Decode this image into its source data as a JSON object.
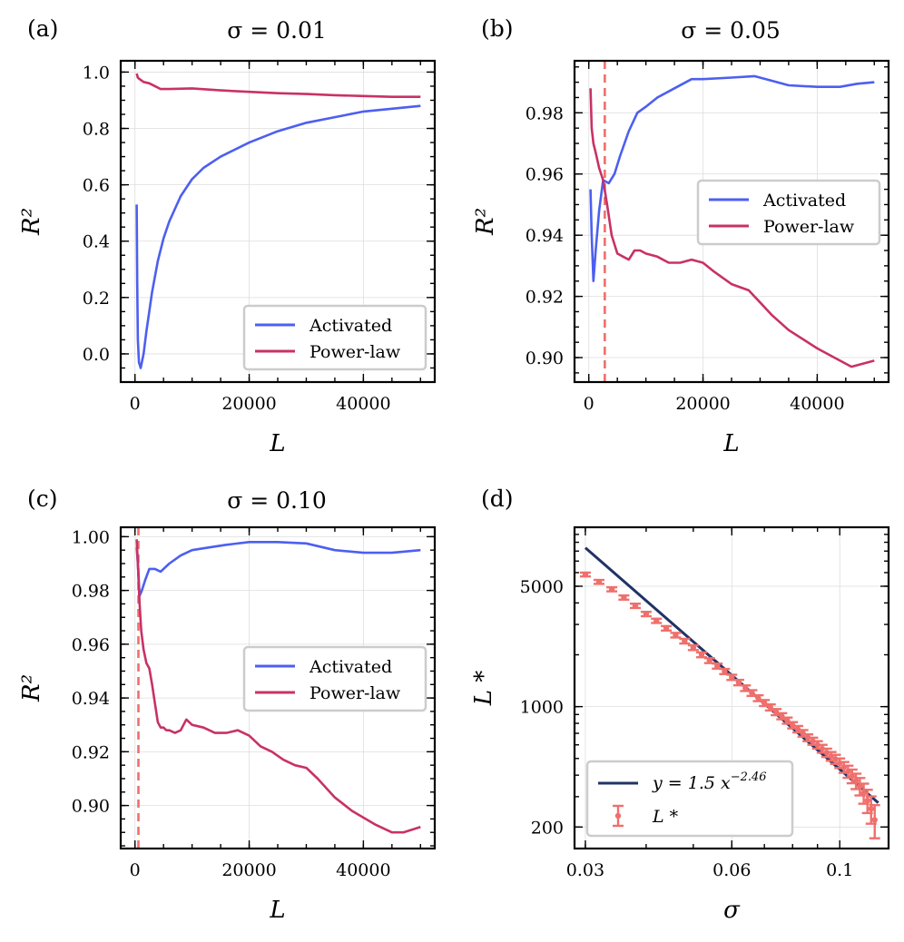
{
  "colors": {
    "activated": "#4c5ff0",
    "power_law": "#c83264",
    "threshold": "#ef6f6c",
    "fit": "#1f3366",
    "lstar": "#ef6f6c"
  },
  "panels": [
    {
      "id": "a",
      "label": "(a)",
      "title": "σ = 0.01"
    },
    {
      "id": "b",
      "label": "(b)",
      "title": "σ = 0.05"
    },
    {
      "id": "c",
      "label": "(c)",
      "title": "σ = 0.10"
    },
    {
      "id": "d",
      "label": "(d)",
      "title": ""
    }
  ],
  "legend": {
    "activated": "Activated",
    "power_law": "Power-law",
    "fit": "y = 1.5 x",
    "fit_exponent": "−2.46",
    "lstar": "L *"
  },
  "chart_data": [
    {
      "panel": "a",
      "type": "line",
      "title": "σ = 0.01",
      "xlabel": "L",
      "ylabel": "R²",
      "xlim": [
        -2500,
        52500
      ],
      "ylim": [
        -0.1,
        1.04
      ],
      "xticks": [
        0,
        20000,
        40000
      ],
      "xtick_labels": [
        "0",
        "20000",
        "40000"
      ],
      "yticks": [
        0.0,
        0.2,
        0.4,
        0.6,
        0.8,
        1.0
      ],
      "ytick_labels": [
        "0.0",
        "0.2",
        "0.4",
        "0.6",
        "0.8",
        "1.0"
      ],
      "legend_position": "lower-right",
      "series": [
        {
          "name": "Activated",
          "x": [
            300,
            400,
            500,
            700,
            1000,
            1500,
            2000,
            3000,
            4000,
            5000,
            6000,
            8000,
            10000,
            12000,
            15000,
            20000,
            25000,
            30000,
            35000,
            40000,
            45000,
            50000
          ],
          "y": [
            0.53,
            0.25,
            0.05,
            -0.03,
            -0.05,
            0.0,
            0.08,
            0.22,
            0.33,
            0.41,
            0.47,
            0.56,
            0.62,
            0.66,
            0.7,
            0.75,
            0.79,
            0.82,
            0.84,
            0.86,
            0.87,
            0.88
          ]
        },
        {
          "name": "Power-law",
          "x": [
            300,
            500,
            800,
            1500,
            2500,
            3500,
            4500,
            6000,
            10000,
            15000,
            20000,
            25000,
            30000,
            35000,
            40000,
            45000,
            50000
          ],
          "y": [
            0.995,
            0.98,
            0.975,
            0.965,
            0.96,
            0.95,
            0.94,
            0.94,
            0.942,
            0.935,
            0.93,
            0.925,
            0.922,
            0.918,
            0.915,
            0.912,
            0.912
          ]
        }
      ]
    },
    {
      "panel": "b",
      "type": "line",
      "title": "σ = 0.05",
      "xlabel": "L",
      "ylabel": "R²",
      "xlim": [
        -2500,
        52500
      ],
      "ylim": [
        0.892,
        0.997
      ],
      "xticks": [
        0,
        20000,
        40000
      ],
      "xtick_labels": [
        "0",
        "20000",
        "40000"
      ],
      "yticks": [
        0.9,
        0.92,
        0.94,
        0.96,
        0.98
      ],
      "ytick_labels": [
        "0.90",
        "0.92",
        "0.94",
        "0.96",
        "0.98"
      ],
      "legend_position": "center-right",
      "threshold_x": 2800,
      "series": [
        {
          "name": "Activated",
          "x": [
            300,
            500,
            800,
            1200,
            1800,
            2500,
            3500,
            4500,
            5500,
            7000,
            8500,
            10000,
            12000,
            15000,
            18000,
            20000,
            25000,
            29000,
            32000,
            35000,
            40000,
            44000,
            47000,
            50000
          ],
          "y": [
            0.955,
            0.94,
            0.925,
            0.935,
            0.948,
            0.958,
            0.957,
            0.96,
            0.966,
            0.974,
            0.98,
            0.982,
            0.985,
            0.988,
            0.991,
            0.991,
            0.9915,
            0.992,
            0.9905,
            0.989,
            0.9885,
            0.9885,
            0.9895,
            0.99
          ]
        },
        {
          "name": "Power-law",
          "x": [
            300,
            500,
            800,
            1200,
            1800,
            2500,
            3200,
            4000,
            5000,
            6000,
            7000,
            8000,
            9000,
            10000,
            12000,
            14000,
            16000,
            18000,
            20000,
            22000,
            25000,
            28000,
            30000,
            32000,
            35000,
            40000,
            43000,
            46000,
            48000,
            50000
          ],
          "y": [
            0.988,
            0.975,
            0.97,
            0.967,
            0.962,
            0.958,
            0.95,
            0.94,
            0.934,
            0.933,
            0.932,
            0.935,
            0.935,
            0.934,
            0.933,
            0.931,
            0.931,
            0.932,
            0.931,
            0.928,
            0.924,
            0.922,
            0.918,
            0.914,
            0.909,
            0.903,
            0.9,
            0.897,
            0.898,
            0.899
          ]
        }
      ]
    },
    {
      "panel": "c",
      "type": "line",
      "title": "σ = 0.10",
      "xlabel": "L",
      "ylabel": "R²",
      "xlim": [
        -2500,
        52500
      ],
      "ylim": [
        0.884,
        1.0035
      ],
      "xticks": [
        0,
        20000,
        40000
      ],
      "xtick_labels": [
        "0",
        "20000",
        "40000"
      ],
      "yticks": [
        0.9,
        0.92,
        0.94,
        0.96,
        0.98,
        1.0
      ],
      "ytick_labels": [
        "0.90",
        "0.92",
        "0.94",
        "0.96",
        "0.98",
        "1.00"
      ],
      "legend_position": "center-right",
      "threshold_x": 600,
      "series": [
        {
          "name": "Activated",
          "x": [
            300,
            500,
            800,
            1200,
            1800,
            2500,
            3500,
            4500,
            6000,
            8000,
            10000,
            13000,
            16000,
            20000,
            25000,
            30000,
            35000,
            40000,
            45000,
            50000
          ],
          "y": [
            0.996,
            0.99,
            0.978,
            0.98,
            0.984,
            0.988,
            0.988,
            0.987,
            0.99,
            0.993,
            0.995,
            0.996,
            0.997,
            0.998,
            0.998,
            0.9975,
            0.995,
            0.994,
            0.994,
            0.995
          ]
        },
        {
          "name": "Power-law",
          "x": [
            300,
            500,
            800,
            1100,
            1500,
            2000,
            2500,
            3000,
            3500,
            4000,
            4500,
            5000,
            5500,
            6000,
            7000,
            8000,
            9000,
            10000,
            12000,
            14000,
            16000,
            18000,
            20000,
            22000,
            24000,
            26000,
            28000,
            30000,
            32000,
            35000,
            38000,
            42000,
            45000,
            47000,
            50000
          ],
          "y": [
            0.999,
            0.99,
            0.975,
            0.965,
            0.958,
            0.953,
            0.951,
            0.945,
            0.938,
            0.931,
            0.929,
            0.929,
            0.928,
            0.928,
            0.927,
            0.928,
            0.932,
            0.93,
            0.929,
            0.927,
            0.927,
            0.928,
            0.926,
            0.922,
            0.92,
            0.917,
            0.915,
            0.914,
            0.91,
            0.903,
            0.898,
            0.893,
            0.89,
            0.89,
            0.892
          ]
        }
      ]
    },
    {
      "panel": "d",
      "type": "scatter",
      "title": "",
      "xlabel": "σ",
      "ylabel": "L *",
      "xscale": "log",
      "yscale": "log",
      "xlim": [
        0.0285,
        0.126
      ],
      "ylim": [
        150,
        11000
      ],
      "xticks": [
        0.03,
        0.06,
        0.1
      ],
      "xtick_labels": [
        "0.03",
        "0.06",
        "0.1"
      ],
      "yticks": [
        200,
        1000,
        5000
      ],
      "ytick_labels": [
        "200",
        "1000",
        "5000"
      ],
      "legend_position": "lower-left",
      "fit": {
        "a": 1.5,
        "b": -2.46,
        "x_range": [
          0.03,
          0.12
        ],
        "label": "y = 1.5 x^−2.46"
      },
      "points": {
        "sigma": [
          0.03,
          0.032,
          0.034,
          0.036,
          0.038,
          0.04,
          0.042,
          0.044,
          0.046,
          0.048,
          0.05,
          0.052,
          0.054,
          0.056,
          0.058,
          0.06,
          0.062,
          0.064,
          0.066,
          0.068,
          0.07,
          0.072,
          0.074,
          0.076,
          0.078,
          0.08,
          0.082,
          0.084,
          0.086,
          0.088,
          0.09,
          0.092,
          0.094,
          0.096,
          0.098,
          0.1,
          0.102,
          0.104,
          0.106,
          0.108,
          0.11,
          0.112,
          0.114,
          0.116,
          0.118
        ],
        "L_star": [
          5850,
          5300,
          4800,
          4300,
          3850,
          3450,
          3150,
          2850,
          2600,
          2400,
          2200,
          2000,
          1850,
          1720,
          1600,
          1480,
          1380,
          1280,
          1200,
          1120,
          1050,
          990,
          930,
          880,
          830,
          780,
          740,
          700,
          660,
          630,
          600,
          570,
          540,
          515,
          495,
          470,
          445,
          420,
          395,
          370,
          345,
          315,
          285,
          255,
          220
        ],
        "err": [
          150,
          140,
          130,
          120,
          110,
          100,
          90,
          85,
          80,
          75,
          70,
          65,
          60,
          58,
          55,
          52,
          50,
          48,
          46,
          44,
          42,
          40,
          38,
          36,
          34,
          33,
          32,
          31,
          30,
          30,
          30,
          30,
          30,
          30,
          30,
          30,
          32,
          34,
          36,
          38,
          40,
          42,
          44,
          46,
          48
        ]
      }
    }
  ]
}
